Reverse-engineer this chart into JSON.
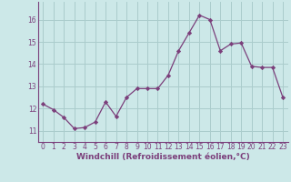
{
  "x": [
    0,
    1,
    2,
    3,
    4,
    5,
    6,
    7,
    8,
    9,
    10,
    11,
    12,
    13,
    14,
    15,
    16,
    17,
    18,
    19,
    20,
    21,
    22,
    23
  ],
  "y": [
    12.2,
    11.95,
    11.6,
    11.1,
    11.15,
    11.4,
    12.3,
    11.65,
    12.5,
    12.9,
    12.9,
    12.9,
    13.5,
    14.6,
    15.4,
    16.2,
    16.0,
    14.6,
    14.9,
    14.95,
    13.9,
    13.85,
    13.85,
    12.5
  ],
  "line_color": "#7b3f7b",
  "marker": "D",
  "marker_size": 2.2,
  "bg_color": "#cce8e8",
  "grid_color": "#aacccc",
  "xlabel": "Windchill (Refroidissement éolien,°C)",
  "xlabel_color": "#7b3f7b",
  "tick_color": "#7b3f7b",
  "ylim": [
    10.5,
    16.8
  ],
  "xlim": [
    -0.5,
    23.5
  ],
  "yticks": [
    11,
    12,
    13,
    14,
    15,
    16
  ],
  "xticks": [
    0,
    1,
    2,
    3,
    4,
    5,
    6,
    7,
    8,
    9,
    10,
    11,
    12,
    13,
    14,
    15,
    16,
    17,
    18,
    19,
    20,
    21,
    22,
    23
  ],
  "tick_fontsize": 5.5,
  "xlabel_fontsize": 6.5
}
